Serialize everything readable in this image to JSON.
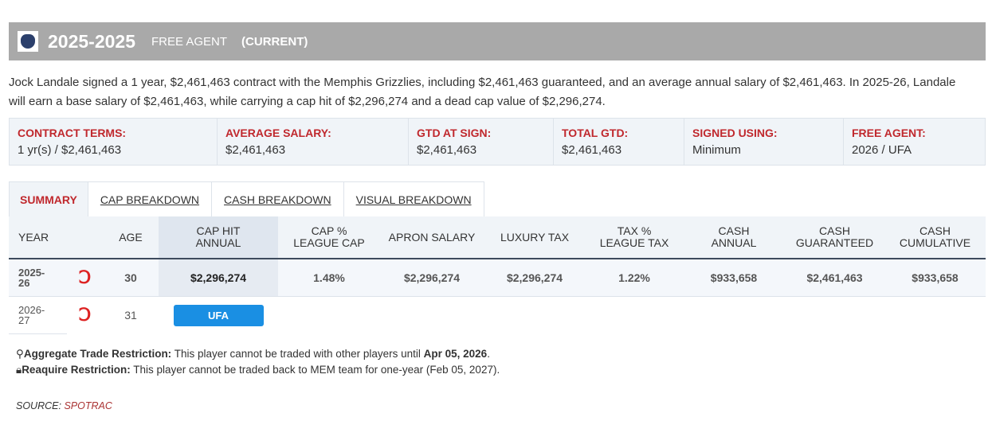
{
  "header": {
    "years": "2025-2025",
    "status": "FREE AGENT",
    "current": "(CURRENT)"
  },
  "description": "Jock Landale signed a 1 year, $2,461,463 contract with the Memphis Grizzlies, including $2,461,463 guaranteed, and an average annual salary of $2,461,463. In 2025-26, Landale will earn a base salary of $2,461,463, while carrying a cap hit of $2,296,274 and a dead cap value of $2,296,274.",
  "terms": [
    {
      "label": "CONTRACT TERMS:",
      "value": "1 yr(s) / $2,461,463"
    },
    {
      "label": "AVERAGE SALARY:",
      "value": "$2,461,463"
    },
    {
      "label": "GTD AT SIGN:",
      "value": "$2,461,463"
    },
    {
      "label": "TOTAL GTD:",
      "value": "$2,461,463"
    },
    {
      "label": "SIGNED USING:",
      "value": "Minimum"
    },
    {
      "label": "FREE AGENT:",
      "value": "2026 / UFA"
    }
  ],
  "tabs": [
    "SUMMARY",
    "CAP BREAKDOWN",
    "CASH BREAKDOWN",
    "VISUAL BREAKDOWN"
  ],
  "columns": [
    [
      "YEAR",
      ""
    ],
    [
      "",
      ""
    ],
    [
      "AGE",
      ""
    ],
    [
      "CAP HIT",
      "ANNUAL"
    ],
    [
      "CAP %",
      "LEAGUE CAP"
    ],
    [
      "APRON SALARY",
      ""
    ],
    [
      "LUXURY TAX",
      ""
    ],
    [
      "TAX %",
      "LEAGUE TAX"
    ],
    [
      "CASH",
      "ANNUAL"
    ],
    [
      "CASH",
      "GUARANTEED"
    ],
    [
      "CASH",
      "CUMULATIVE"
    ]
  ],
  "rows": [
    {
      "year1": "2025-",
      "year2": "26",
      "age": "30",
      "cap_hit": "$2,296,274",
      "cap_pct": "1.48%",
      "apron": "$2,296,274",
      "lux": "$2,296,274",
      "tax_pct": "1.22%",
      "cash_annual": "$933,658",
      "cash_gtd": "$2,461,463",
      "cash_cum": "$933,658"
    },
    {
      "year1": "2026-",
      "year2": "27",
      "age": "31",
      "badge": "UFA"
    }
  ],
  "restrictions": [
    {
      "label": "Aggregate Trade Restriction:",
      "text": " This player cannot be traded with other players until ",
      "date": "Apr 05, 2026",
      "end": "."
    },
    {
      "label": "Reaquire Restriction:",
      "text": " This player cannot be traded back to MEM team for one-year (Feb 05, 2027)."
    }
  ],
  "source": {
    "label": "SOURCE:",
    "value": "SPOTRAC"
  }
}
